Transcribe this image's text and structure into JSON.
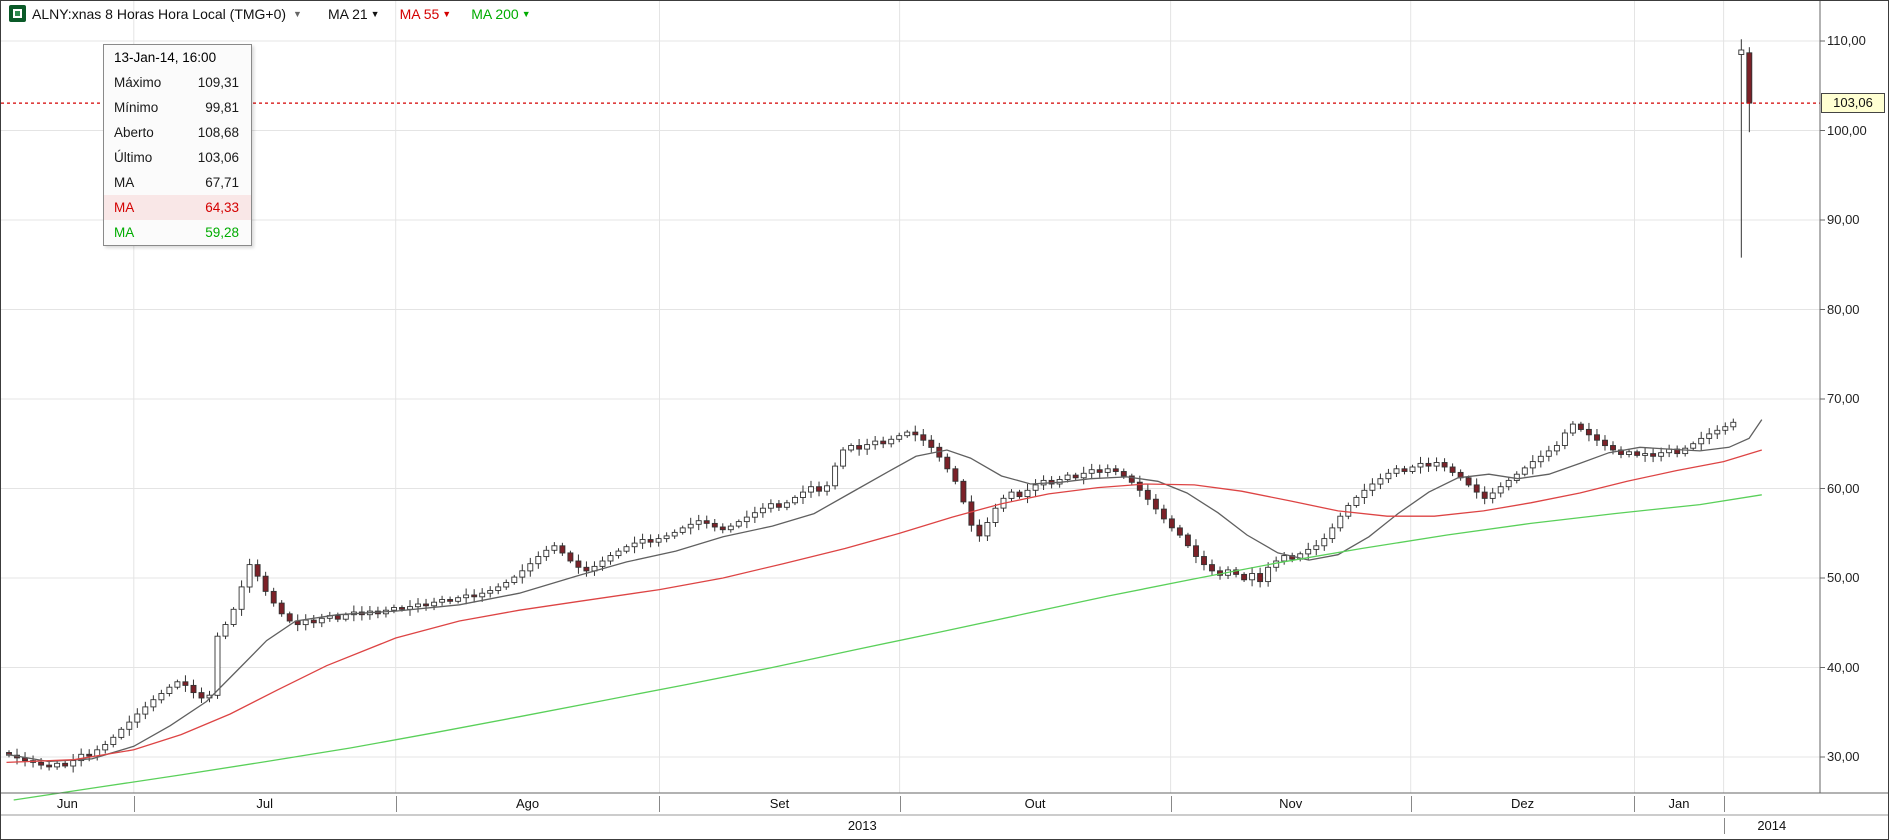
{
  "header": {
    "symbol_label": "ALNY:xnas 8 Horas Hora Local (TMG+0)",
    "dropdown_glyph": "▼",
    "indicators": [
      {
        "label": "MA 21",
        "color": "#111111"
      },
      {
        "label": "MA 55",
        "color": "#d40000"
      },
      {
        "label": "MA 200",
        "color": "#00ac00"
      }
    ]
  },
  "tooltip": {
    "title": "13-Jan-14, 16:00",
    "rows": [
      {
        "label": "Máximo",
        "value": "109,31",
        "color": "#1a1a1a",
        "bg": ""
      },
      {
        "label": "Mínimo",
        "value": "99,81",
        "color": "#1a1a1a",
        "bg": ""
      },
      {
        "label": "Aberto",
        "value": "108,68",
        "color": "#1a1a1a",
        "bg": ""
      },
      {
        "label": "Último",
        "value": "103,06",
        "color": "#1a1a1a",
        "bg": ""
      },
      {
        "label": "MA",
        "value": "67,71",
        "color": "#1a1a1a",
        "bg": ""
      },
      {
        "label": "MA",
        "value": "64,33",
        "color": "#d40000",
        "bg": "#f9e7e7"
      },
      {
        "label": "MA",
        "value": "59,28",
        "color": "#00ac00",
        "bg": ""
      }
    ]
  },
  "axes": {
    "y_ticks": [
      110,
      100,
      90,
      80,
      70,
      60,
      50,
      40,
      30
    ],
    "y_tick_labels": [
      "110,00",
      "100,00",
      "90,00",
      "80,00",
      "70,00",
      "60,00",
      "50,00",
      "40,00",
      "30,00"
    ],
    "last_price": 103.06,
    "last_price_label": "103,06",
    "months": [
      {
        "label": "Jun",
        "start": 0.0,
        "end": 0.073
      },
      {
        "label": "Jul",
        "start": 0.073,
        "end": 0.217
      },
      {
        "label": "Ago",
        "start": 0.217,
        "end": 0.362
      },
      {
        "label": "Set",
        "start": 0.362,
        "end": 0.494
      },
      {
        "label": "Out",
        "start": 0.494,
        "end": 0.643
      },
      {
        "label": "Nov",
        "start": 0.643,
        "end": 0.775
      },
      {
        "label": "Dez",
        "start": 0.775,
        "end": 0.898
      },
      {
        "label": "Jan",
        "start": 0.898,
        "end": 0.947
      }
    ],
    "years": [
      {
        "label": "2013",
        "start": 0.0,
        "end": 0.947
      },
      {
        "label": "2014",
        "start": 0.947,
        "end": 1.0
      }
    ]
  },
  "chart_data": {
    "type": "candlestick",
    "symbol": "ALNY:xnas",
    "interval": "8 Horas",
    "timezone": "Hora Local (TMG+0)",
    "ylim": [
      26,
      114.5
    ],
    "grid": true,
    "first_open": 30.5,
    "up_color": "#ffffff",
    "down_color": "#7c2128",
    "outline_color": "#333333",
    "closes": [
      30.2,
      29.9,
      29.6,
      29.4,
      29.1,
      28.9,
      29.3,
      29.0,
      29.6,
      30.3,
      30.1,
      30.8,
      31.4,
      32.2,
      33.1,
      33.9,
      34.8,
      35.6,
      36.4,
      37.1,
      37.8,
      38.4,
      38.0,
      37.2,
      36.6,
      36.9,
      43.5,
      44.8,
      46.5,
      49.0,
      51.5,
      50.2,
      48.5,
      47.2,
      46.0,
      45.2,
      44.8,
      45.3,
      45.0,
      45.5,
      45.8,
      45.4,
      45.9,
      46.2,
      45.9,
      46.3,
      46.0,
      46.4,
      46.7,
      46.5,
      46.8,
      47.1,
      46.9,
      47.3,
      47.6,
      47.4,
      47.8,
      48.1,
      47.9,
      48.3,
      48.6,
      49.0,
      49.5,
      50.1,
      50.8,
      51.6,
      52.4,
      53.1,
      53.6,
      52.8,
      51.9,
      51.2,
      50.8,
      51.3,
      51.9,
      52.5,
      53.0,
      53.5,
      53.9,
      54.3,
      54.0,
      54.4,
      54.7,
      55.1,
      55.6,
      56.0,
      56.4,
      56.1,
      55.7,
      55.4,
      55.8,
      56.3,
      56.8,
      57.3,
      57.8,
      58.3,
      57.9,
      58.4,
      59.0,
      59.6,
      60.2,
      59.7,
      60.3,
      62.5,
      64.3,
      64.8,
      64.4,
      64.9,
      65.3,
      65.0,
      65.5,
      65.9,
      66.3,
      66.0,
      65.4,
      64.6,
      63.5,
      62.2,
      60.8,
      58.5,
      55.9,
      54.7,
      56.2,
      57.8,
      58.9,
      59.6,
      59.1,
      59.8,
      60.4,
      60.9,
      60.5,
      61.0,
      61.5,
      61.2,
      61.7,
      62.1,
      61.8,
      62.2,
      61.9,
      61.4,
      60.7,
      59.8,
      58.8,
      57.7,
      56.6,
      55.6,
      54.8,
      53.6,
      52.4,
      51.5,
      50.8,
      50.3,
      50.9,
      50.4,
      49.8,
      50.5,
      49.6,
      51.2,
      51.9,
      52.5,
      52.1,
      52.7,
      53.2,
      53.6,
      54.4,
      55.6,
      56.9,
      58.1,
      59.0,
      59.8,
      60.5,
      61.1,
      61.7,
      62.2,
      61.9,
      62.4,
      62.8,
      62.5,
      62.9,
      62.4,
      61.8,
      61.2,
      60.4,
      59.6,
      58.9,
      59.5,
      60.2,
      60.9,
      61.6,
      62.3,
      63.0,
      63.6,
      64.2,
      64.8,
      66.2,
      67.2,
      66.6,
      66.0,
      65.4,
      64.8,
      64.3,
      63.8,
      64.1,
      63.7,
      63.9,
      63.6,
      64.0,
      64.4,
      63.9,
      64.5,
      65.0,
      65.6,
      66.1,
      66.5,
      66.9,
      67.4,
      109.0,
      103.06
    ],
    "bar_overrides": {
      "-2": {
        "o": 108.5,
        "h": 110.2,
        "l": 85.8,
        "c": 109.0
      },
      "-1": {
        "o": 108.68,
        "h": 109.31,
        "l": 99.81,
        "c": 103.06
      }
    },
    "last_bar": {
      "open": 108.68,
      "high": 109.31,
      "low": 99.81,
      "close": 103.06
    },
    "series": [
      {
        "name": "MA 21",
        "color": "#606060",
        "width": 1.3,
        "points": [
          [
            0.003,
            30.3
          ],
          [
            0.026,
            29.5
          ],
          [
            0.05,
            29.8
          ],
          [
            0.073,
            31.2
          ],
          [
            0.093,
            33.5
          ],
          [
            0.113,
            36.2
          ],
          [
            0.129,
            39.5
          ],
          [
            0.146,
            43.0
          ],
          [
            0.162,
            45.2
          ],
          [
            0.185,
            45.9
          ],
          [
            0.217,
            46.3
          ],
          [
            0.252,
            47.0
          ],
          [
            0.285,
            48.3
          ],
          [
            0.318,
            50.3
          ],
          [
            0.344,
            51.8
          ],
          [
            0.371,
            53.0
          ],
          [
            0.397,
            54.6
          ],
          [
            0.424,
            55.8
          ],
          [
            0.447,
            57.2
          ],
          [
            0.467,
            59.5
          ],
          [
            0.487,
            61.8
          ],
          [
            0.503,
            63.6
          ],
          [
            0.52,
            64.3
          ],
          [
            0.533,
            63.4
          ],
          [
            0.55,
            61.4
          ],
          [
            0.566,
            60.5
          ],
          [
            0.583,
            60.7
          ],
          [
            0.599,
            61.1
          ],
          [
            0.619,
            61.3
          ],
          [
            0.636,
            60.8
          ],
          [
            0.652,
            59.5
          ],
          [
            0.669,
            57.3
          ],
          [
            0.685,
            54.8
          ],
          [
            0.702,
            52.8
          ],
          [
            0.719,
            52.0
          ],
          [
            0.735,
            52.6
          ],
          [
            0.752,
            54.6
          ],
          [
            0.768,
            57.2
          ],
          [
            0.785,
            59.6
          ],
          [
            0.801,
            61.2
          ],
          [
            0.818,
            61.6
          ],
          [
            0.834,
            61.1
          ],
          [
            0.851,
            61.6
          ],
          [
            0.868,
            62.8
          ],
          [
            0.884,
            64.0
          ],
          [
            0.901,
            64.6
          ],
          [
            0.917,
            64.4
          ],
          [
            0.934,
            64.2
          ],
          [
            0.95,
            64.6
          ],
          [
            0.961,
            65.6
          ],
          [
            0.968,
            67.7
          ]
        ]
      },
      {
        "name": "MA 55",
        "color": "#dd4444",
        "width": 1.3,
        "points": [
          [
            0.003,
            29.4
          ],
          [
            0.04,
            29.7
          ],
          [
            0.073,
            30.8
          ],
          [
            0.099,
            32.5
          ],
          [
            0.126,
            34.8
          ],
          [
            0.152,
            37.5
          ],
          [
            0.179,
            40.2
          ],
          [
            0.217,
            43.3
          ],
          [
            0.252,
            45.2
          ],
          [
            0.285,
            46.4
          ],
          [
            0.318,
            47.4
          ],
          [
            0.362,
            48.7
          ],
          [
            0.397,
            50.0
          ],
          [
            0.43,
            51.6
          ],
          [
            0.464,
            53.3
          ],
          [
            0.494,
            55.0
          ],
          [
            0.523,
            56.8
          ],
          [
            0.55,
            58.3
          ],
          [
            0.576,
            59.4
          ],
          [
            0.603,
            60.1
          ],
          [
            0.629,
            60.5
          ],
          [
            0.656,
            60.4
          ],
          [
            0.682,
            59.7
          ],
          [
            0.709,
            58.6
          ],
          [
            0.735,
            57.5
          ],
          [
            0.762,
            56.9
          ],
          [
            0.788,
            56.9
          ],
          [
            0.815,
            57.5
          ],
          [
            0.841,
            58.4
          ],
          [
            0.868,
            59.5
          ],
          [
            0.894,
            60.8
          ],
          [
            0.921,
            62.0
          ],
          [
            0.947,
            63.0
          ],
          [
            0.968,
            64.3
          ]
        ]
      },
      {
        "name": "MA 200",
        "color": "#5ad05a",
        "width": 1.3,
        "points": [
          [
            0.007,
            25.2
          ],
          [
            0.053,
            26.6
          ],
          [
            0.099,
            28.0
          ],
          [
            0.146,
            29.5
          ],
          [
            0.192,
            31.0
          ],
          [
            0.238,
            32.7
          ],
          [
            0.285,
            34.5
          ],
          [
            0.331,
            36.3
          ],
          [
            0.377,
            38.1
          ],
          [
            0.424,
            40.0
          ],
          [
            0.47,
            42.0
          ],
          [
            0.517,
            44.0
          ],
          [
            0.563,
            46.0
          ],
          [
            0.609,
            48.0
          ],
          [
            0.656,
            49.9
          ],
          [
            0.702,
            51.7
          ],
          [
            0.748,
            53.3
          ],
          [
            0.795,
            54.8
          ],
          [
            0.841,
            56.1
          ],
          [
            0.887,
            57.2
          ],
          [
            0.934,
            58.2
          ],
          [
            0.968,
            59.3
          ]
        ]
      }
    ]
  }
}
